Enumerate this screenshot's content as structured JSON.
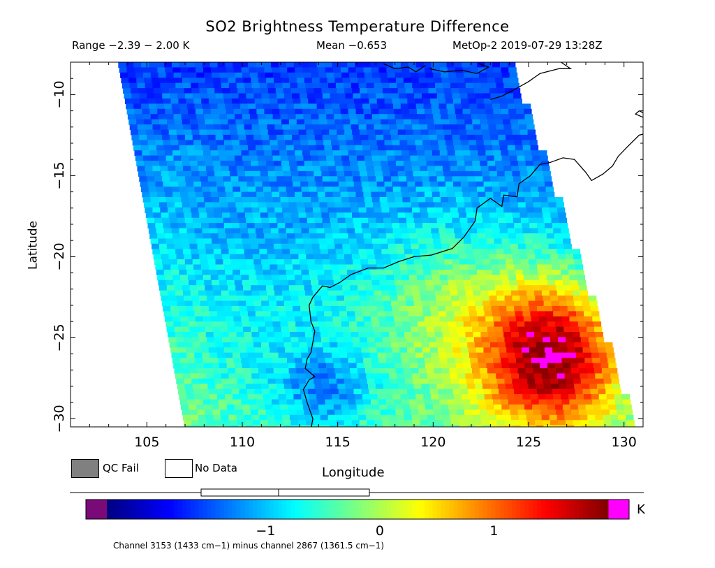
{
  "header": {
    "title": "SO2 Brightness Temperature Difference",
    "range": "Range −2.39 − 2.00 K",
    "mean": "Mean −0.653",
    "satellite_time": "MetOp-2 2019-07-29 13:28Z"
  },
  "map": {
    "ylabel": "Latitude",
    "xlabel": "Longitude",
    "lon_range": [
      101,
      131
    ],
    "lat_range": [
      -30.5,
      -8
    ],
    "lon_ticks": [
      105,
      110,
      115,
      120,
      125,
      130
    ],
    "lat_ticks": [
      -10,
      -15,
      -20,
      -25,
      -30
    ],
    "lon_tick_labels": [
      "105",
      "110",
      "115",
      "120",
      "125",
      "130"
    ],
    "lat_tick_labels": [
      "−10",
      "−15",
      "−20",
      "−25",
      "−30"
    ],
    "swath_lon_edges_at_top": [
      103.5,
      124.0
    ],
    "swath_lon_edges_at_bottom": [
      107.0,
      130.5
    ],
    "coastline_color": "#000000"
  },
  "legend": {
    "qc_fail_label": "QC Fail",
    "qc_fail_color": "#808080",
    "no_data_label": "No Data",
    "no_data_color": "#ffffff"
  },
  "colorbar": {
    "unit": "K",
    "range": [
      -2.39,
      2.0
    ],
    "tick_values": [
      -1,
      0,
      1
    ],
    "tick_labels": [
      "−1",
      "0",
      "1"
    ],
    "below_color": "#7a0a78",
    "above_color": "#ff00ff",
    "colors": [
      "#00007f",
      "#0000ff",
      "#007fff",
      "#00ffff",
      "#7fff7f",
      "#ffff00",
      "#ff7f00",
      "#ff0000",
      "#7f0000"
    ]
  },
  "footer": {
    "caption": "Channel 3153 (1433 cm−1) minus channel 2867 (1361.5 cm−1)"
  },
  "chart_data": {
    "type": "heatmap",
    "title": "SO2 Brightness Temperature Difference",
    "xlabel": "Longitude",
    "ylabel": "Latitude",
    "xlim": [
      101,
      131
    ],
    "ylim": [
      -30.5,
      -8
    ],
    "value_range": [
      -2.39,
      2.0
    ],
    "mean": -0.653,
    "units": "K",
    "grid": false
  }
}
